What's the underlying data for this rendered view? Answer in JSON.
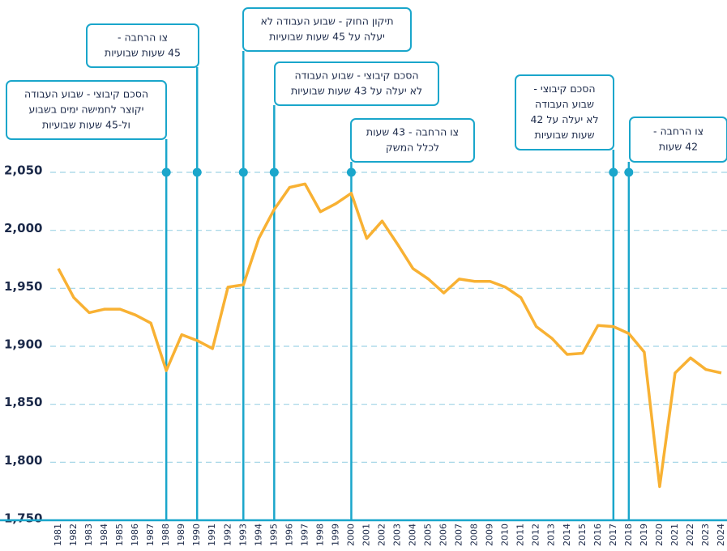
{
  "chart_data": {
    "type": "line",
    "x": [
      1981,
      1982,
      1983,
      1984,
      1985,
      1986,
      1987,
      1988,
      1989,
      1990,
      1991,
      1992,
      1993,
      1994,
      1995,
      1996,
      1997,
      1998,
      1999,
      2000,
      2001,
      2002,
      2003,
      2004,
      2005,
      2006,
      2007,
      2008,
      2009,
      2010,
      2011,
      2012,
      2013,
      2014,
      2015,
      2016,
      2017,
      2018,
      2019,
      2020,
      2021,
      2022,
      2023,
      2024
    ],
    "series": [
      {
        "color": "#f8b133",
        "values": [
          1967,
          1942,
          1929,
          1932,
          1932,
          1927,
          1920,
          1879,
          1910,
          1905,
          1898,
          1951,
          1953,
          1993,
          2018,
          2037,
          2040,
          2016,
          2023,
          2032,
          1993,
          2008,
          1988,
          1967,
          1958,
          1946,
          1958,
          1956,
          1956,
          1951,
          1942,
          1917,
          1907,
          1893,
          1894,
          1918,
          1917,
          1911,
          1895,
          1779,
          1877,
          1890,
          1880,
          1877
        ]
      }
    ],
    "xlim": [
      1981,
      2024
    ],
    "ylim": [
      1750,
      2050
    ],
    "yticks": [
      {
        "value": 1750,
        "label": "1,750"
      },
      {
        "value": 1800,
        "label": "1,800"
      },
      {
        "value": 1850,
        "label": "1,850"
      },
      {
        "value": 1900,
        "label": "1,900"
      },
      {
        "value": 1950,
        "label": "1,950"
      },
      {
        "value": 2000,
        "label": "2,000"
      },
      {
        "value": 2050,
        "label": "2,050"
      }
    ],
    "grid": true,
    "annotation_color": "#1aa6cb",
    "annotations": [
      {
        "x": 1988,
        "text": [
          "הסכם קיבוצי - שבוע העבודה",
          "יקוצר לחמישה ימים בשבוע",
          "ול-45 שעות שבועיות"
        ]
      },
      {
        "x": 1990,
        "text": [
          "צו הרחבה -",
          "45 שעות שבועיות"
        ]
      },
      {
        "x": 1993,
        "text": [
          "תיקון החוק - שבוע העבודה לא",
          "יעלה על 45 שעות שבועיות"
        ]
      },
      {
        "x": 1995,
        "text": [
          "הסכם קיבוצי - שבוע העבודה",
          "לא יעלה על 43 שעות שבועיות"
        ]
      },
      {
        "x": 2000,
        "text": [
          "צו הרחבה - 43 שעות",
          "לכלל המשק"
        ]
      },
      {
        "x": 2017,
        "text": [
          "הסכם קיבוצי -",
          "שבוע העבודה",
          "לא יעלה על 42",
          "שעות שבועיות"
        ]
      },
      {
        "x": 2018,
        "text": [
          "צו הרחבה -",
          "42 שעות"
        ]
      }
    ]
  }
}
